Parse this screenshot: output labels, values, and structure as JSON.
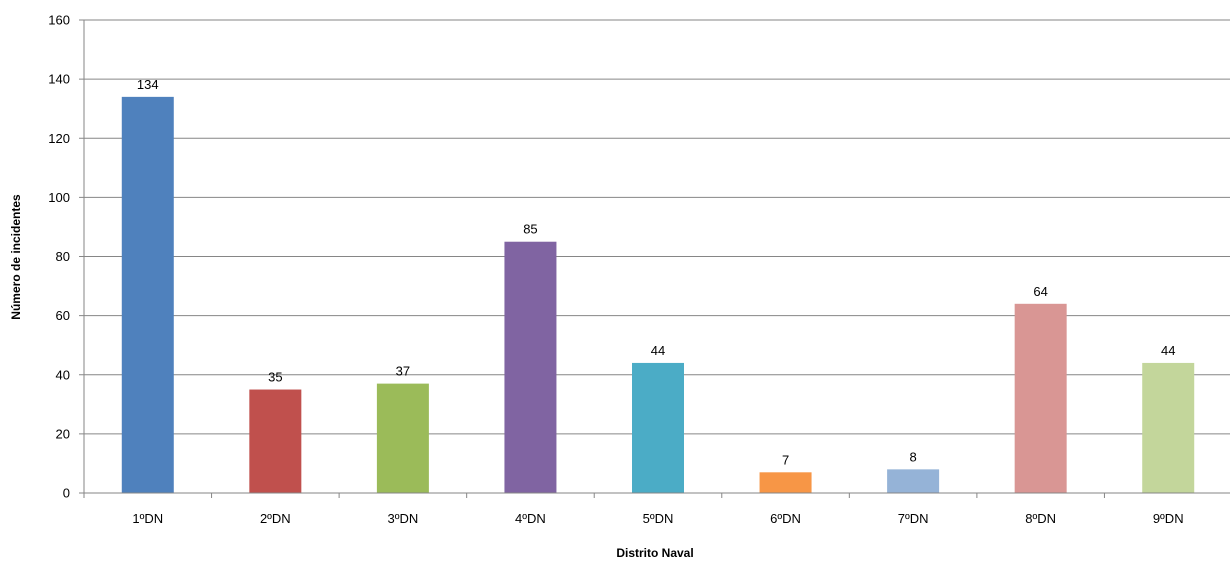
{
  "chart_data": {
    "type": "bar",
    "categories": [
      "1ºDN",
      "2ºDN",
      "3ºDN",
      "4ºDN",
      "5ºDN",
      "6ºDN",
      "7ºDN",
      "8ºDN",
      "9ºDN"
    ],
    "values": [
      134,
      35,
      37,
      85,
      44,
      7,
      8,
      64,
      44
    ],
    "colors": [
      "#4f81bd",
      "#c0504d",
      "#9bbb59",
      "#8064a2",
      "#4bacc6",
      "#f79646",
      "#95b3d7",
      "#d99694",
      "#c3d69b"
    ],
    "xlabel": "Distrito Naval",
    "ylabel": "Número de incidentes",
    "ylim": [
      0,
      160
    ],
    "yticks": [
      0,
      20,
      40,
      60,
      80,
      100,
      120,
      140,
      160
    ],
    "grid": true,
    "data_labels": true
  }
}
